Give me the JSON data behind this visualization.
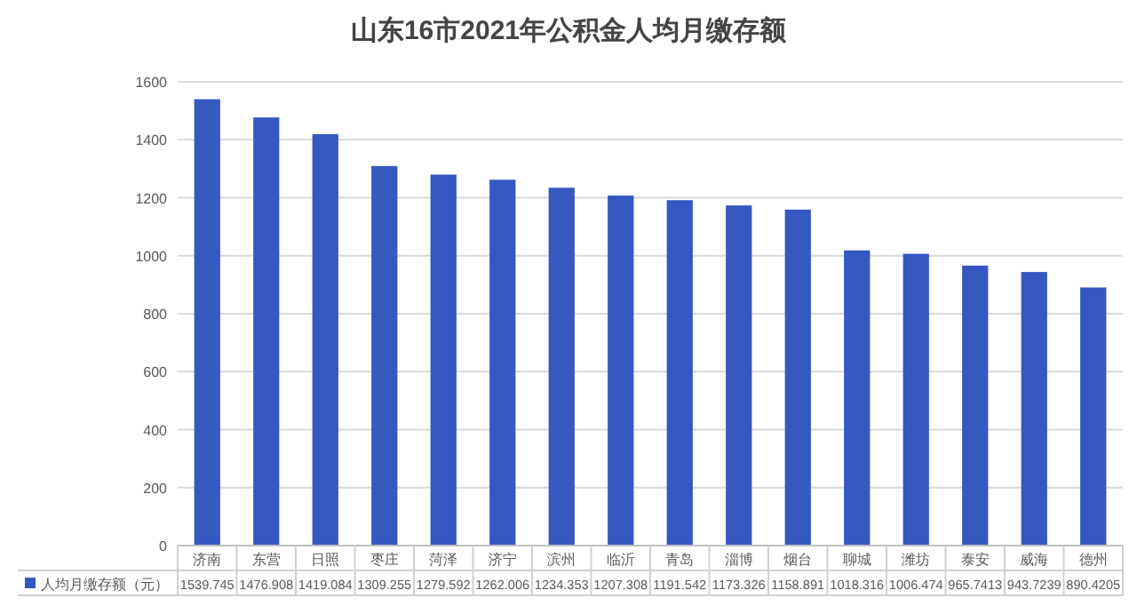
{
  "chart_data": {
    "type": "bar",
    "title": "山东16市2021年公积金人均月缴存额",
    "categories": [
      "济南",
      "东营",
      "日照",
      "枣庄",
      "菏泽",
      "济宁",
      "滨州",
      "临沂",
      "青岛",
      "淄博",
      "烟台",
      "聊城",
      "潍坊",
      "泰安",
      "威海",
      "德州"
    ],
    "series": [
      {
        "name": "人均月缴存额（元）",
        "color": "#3558c0",
        "values": [
          1539.745,
          1476.908,
          1419.084,
          1309.255,
          1279.592,
          1262.006,
          1234.353,
          1207.308,
          1191.542,
          1173.326,
          1158.891,
          1018.316,
          1006.474,
          965.7413,
          943.7239,
          890.4205
        ]
      }
    ],
    "ylim": [
      0,
      1600
    ],
    "yticks": [
      0,
      200,
      400,
      600,
      800,
      1000,
      1200,
      1400,
      1600
    ],
    "grid": "y",
    "legend": "bottom",
    "data_labels": true
  }
}
